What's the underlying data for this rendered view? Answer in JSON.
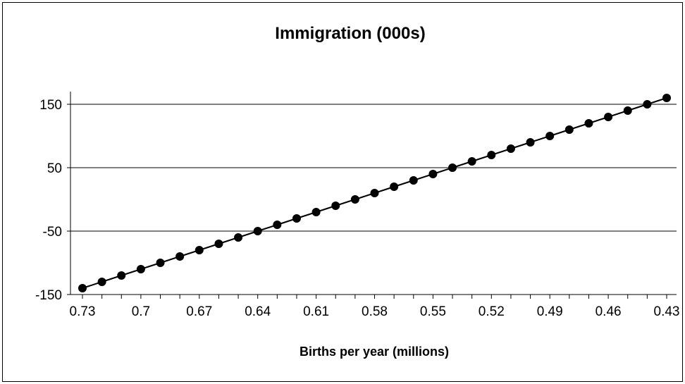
{
  "chart_data": {
    "type": "line",
    "title": "Immigration (000s)",
    "xlabel": "Births per year (millions)",
    "ylabel": "",
    "x_reversed": true,
    "xlim": [
      0.73,
      0.43
    ],
    "ylim": [
      -150,
      150
    ],
    "y_ticks": [
      150,
      50,
      -50,
      -150
    ],
    "x_tick_labels": [
      "0.73",
      "0.7",
      "0.67",
      "0.64",
      "0.61",
      "0.58",
      "0.55",
      "0.52",
      "0.49",
      "0.46",
      "0.43"
    ],
    "grid": true,
    "legend": "none",
    "marker": "circle",
    "line_color": "#000000",
    "series": [
      {
        "x": [
          0.73,
          0.72,
          0.71,
          0.7,
          0.69,
          0.68,
          0.67,
          0.66,
          0.65,
          0.64,
          0.63,
          0.62,
          0.61,
          0.6,
          0.59,
          0.58,
          0.57,
          0.56,
          0.55,
          0.54,
          0.53,
          0.52,
          0.51,
          0.5,
          0.49,
          0.48,
          0.47,
          0.46,
          0.45,
          0.44,
          0.43
        ],
        "values": [
          -140,
          -130,
          -120,
          -110,
          -100,
          -90,
          -80,
          -70,
          -60,
          -50,
          -40,
          -30,
          -20,
          -10,
          0,
          10,
          20,
          30,
          40,
          50,
          60,
          70,
          80,
          90,
          100,
          110,
          120,
          130,
          140,
          150,
          160
        ]
      }
    ]
  }
}
